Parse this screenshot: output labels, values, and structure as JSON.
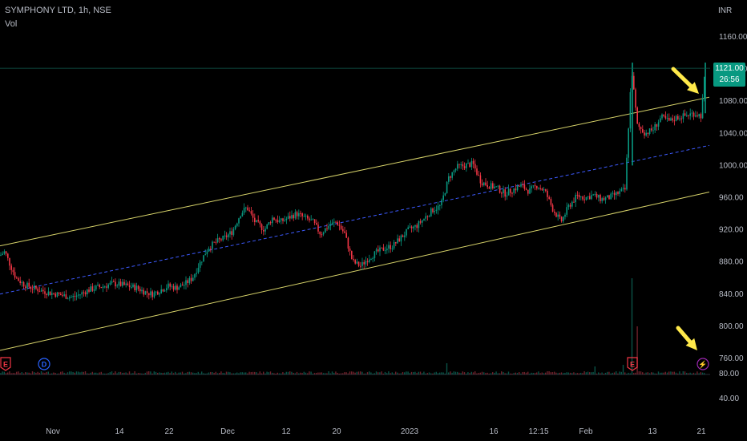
{
  "header": {
    "symbol": "SYMPHONY LTD, 1h, NSE",
    "indicator": "Vol",
    "currency": "INR"
  },
  "last_price": {
    "price": "1121.00",
    "countdown": "26:56"
  },
  "colors": {
    "background": "#000000",
    "up": "#089981",
    "down": "#f23645",
    "channel": "#d7d36a",
    "midline": "#3d5afe",
    "arrow": "#ffe94a",
    "event_earnings": "#f23645",
    "event_dividend": "#2962ff",
    "event_flash": "#9c27b0"
  },
  "chart_data": {
    "type": "line",
    "title": "SYMPHONY LTD, 1h, NSE",
    "price_axis": {
      "ticks": [
        "1160.00",
        "1120.00",
        "1080.00",
        "1040.00",
        "1000.00",
        "960.00",
        "920.00",
        "880.00",
        "840.00",
        "800.00",
        "760.00"
      ],
      "range": [
        745,
        1175
      ]
    },
    "volume_axis": {
      "ticks": [
        "80.00",
        "40.00"
      ]
    },
    "x_ticks": [
      "Nov",
      "14",
      "22",
      "Dec",
      "12",
      "20",
      "2023",
      "16",
      "12:15",
      "Feb",
      "13",
      "21"
    ],
    "series": [
      {
        "name": "",
        "points": [
          [
            0,
            888
          ],
          [
            6,
            893
          ],
          [
            12,
            878
          ],
          [
            20,
            860
          ],
          [
            30,
            852
          ],
          [
            40,
            848
          ],
          [
            50,
            845
          ],
          [
            60,
            842
          ],
          [
            70,
            840
          ],
          [
            80,
            838
          ],
          [
            90,
            836
          ],
          [
            100,
            840
          ],
          [
            110,
            845
          ],
          [
            120,
            848
          ],
          [
            130,
            850
          ],
          [
            140,
            853
          ],
          [
            150,
            852
          ],
          [
            160,
            850
          ],
          [
            170,
            848
          ],
          [
            180,
            843
          ],
          [
            190,
            840
          ],
          [
            200,
            845
          ],
          [
            210,
            850
          ],
          [
            220,
            848
          ],
          [
            230,
            852
          ],
          [
            240,
            860
          ],
          [
            250,
            880
          ],
          [
            260,
            898
          ],
          [
            270,
            905
          ],
          [
            280,
            910
          ],
          [
            290,
            918
          ],
          [
            300,
            940
          ],
          [
            308,
            948
          ],
          [
            318,
            930
          ],
          [
            330,
            920
          ],
          [
            340,
            935
          ],
          [
            350,
            930
          ],
          [
            360,
            935
          ],
          [
            370,
            940
          ],
          [
            380,
            935
          ],
          [
            390,
            930
          ],
          [
            400,
            915
          ],
          [
            410,
            925
          ],
          [
            420,
            930
          ],
          [
            430,
            915
          ],
          [
            440,
            880
          ],
          [
            450,
            875
          ],
          [
            460,
            885
          ],
          [
            470,
            892
          ],
          [
            480,
            897
          ],
          [
            490,
            900
          ],
          [
            500,
            910
          ],
          [
            510,
            920
          ],
          [
            520,
            925
          ],
          [
            530,
            935
          ],
          [
            540,
            945
          ],
          [
            550,
            950
          ],
          [
            560,
            985
          ],
          [
            570,
            998
          ],
          [
            580,
            1000
          ],
          [
            590,
            1002
          ],
          [
            600,
            980
          ],
          [
            610,
            975
          ],
          [
            620,
            972
          ],
          [
            630,
            965
          ],
          [
            640,
            970
          ],
          [
            650,
            975
          ],
          [
            660,
            968
          ],
          [
            670,
            975
          ],
          [
            680,
            968
          ],
          [
            690,
            945
          ],
          [
            700,
            930
          ],
          [
            710,
            950
          ],
          [
            720,
            962
          ],
          [
            730,
            960
          ],
          [
            740,
            963
          ],
          [
            750,
            958
          ],
          [
            760,
            960
          ],
          [
            770,
            965
          ],
          [
            780,
            970
          ],
          [
            788,
            1120
          ],
          [
            795,
            1050
          ],
          [
            805,
            1040
          ],
          [
            815,
            1045
          ],
          [
            825,
            1060
          ],
          [
            835,
            1055
          ],
          [
            845,
            1060
          ],
          [
            855,
            1062
          ],
          [
            865,
            1065
          ],
          [
            875,
            1062
          ],
          [
            880,
            1121
          ]
        ]
      }
    ],
    "channel": {
      "upper": [
        [
          0,
          900
        ],
        [
          885,
          1085
        ]
      ],
      "middle": [
        [
          0,
          840
        ],
        [
          885,
          1025
        ]
      ],
      "lower": [
        [
          0,
          770
        ],
        [
          885,
          967
        ]
      ]
    },
    "events": [
      {
        "label": "E",
        "x": 7,
        "kind": "earnings"
      },
      {
        "label": "D",
        "x": 55,
        "kind": "dividend"
      },
      {
        "label": "E",
        "x": 789,
        "kind": "earnings"
      },
      {
        "label": "⚡",
        "x": 877,
        "kind": "flash"
      }
    ]
  }
}
